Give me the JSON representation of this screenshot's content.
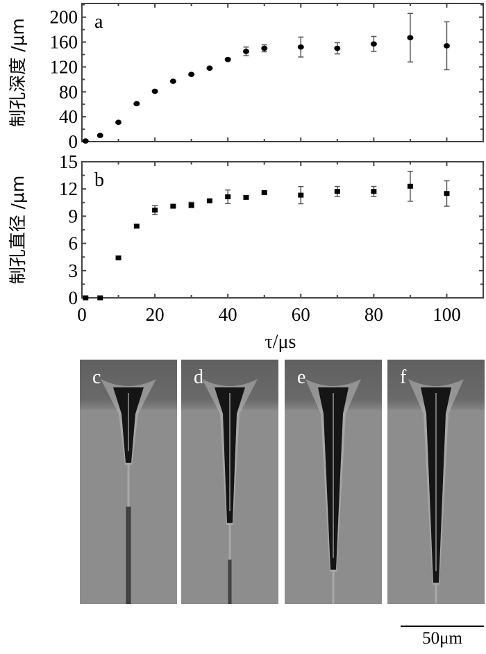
{
  "chart_data": [
    {
      "type": "scatter",
      "panel_label": "a",
      "ylabel": "制孔深度 /μm",
      "xlabel": "τ/μs",
      "xlim": [
        0,
        110
      ],
      "ylim": [
        0,
        222
      ],
      "xticks": [
        0,
        20,
        40,
        60,
        80,
        100
      ],
      "yticks": [
        0,
        40,
        80,
        120,
        160,
        200
      ],
      "marker": "circle",
      "x": [
        1,
        5,
        10,
        15,
        20,
        25,
        30,
        35,
        40,
        45,
        50,
        60,
        70,
        80,
        90,
        100
      ],
      "y": [
        1,
        10,
        31,
        61,
        81,
        97,
        108,
        118,
        132,
        145,
        150,
        152,
        150,
        157,
        167,
        154
      ],
      "yerr": [
        0,
        0,
        0,
        1.5,
        0,
        0,
        0,
        0,
        1.5,
        7,
        5.6,
        16,
        9,
        12,
        39,
        38.5
      ]
    },
    {
      "type": "scatter",
      "panel_label": "b",
      "ylabel": "制孔直径 /μm",
      "xlabel": "τ/μs",
      "xlim": [
        0,
        110
      ],
      "ylim": [
        0,
        15
      ],
      "xticks": [
        0,
        20,
        40,
        60,
        80,
        100
      ],
      "yticks": [
        0,
        3,
        6,
        9,
        12,
        15
      ],
      "marker": "square",
      "x": [
        1,
        5,
        10,
        15,
        20,
        25,
        30,
        35,
        40,
        45,
        50,
        60,
        70,
        80,
        90,
        100
      ],
      "y": [
        0,
        0,
        4.4,
        7.9,
        9.67,
        10.1,
        10.23,
        10.7,
        11.14,
        11.07,
        11.6,
        11.32,
        11.73,
        11.73,
        12.3,
        11.5
      ],
      "yerr": [
        0,
        0,
        0,
        0,
        0.5,
        0,
        0.3,
        0,
        0.75,
        0,
        0,
        0.95,
        0.55,
        0.55,
        1.65,
        1.4
      ]
    }
  ],
  "xaxis_label": "τ/μs",
  "images": [
    {
      "label": "c",
      "depth": 0.31
    },
    {
      "label": "d",
      "depth": 0.63
    },
    {
      "label": "e",
      "depth": 0.88
    },
    {
      "label": "f",
      "depth": 0.95
    }
  ],
  "scale_bar": {
    "label": "50μm"
  },
  "colors": {
    "marker": "#000000",
    "errorbar": "#555555",
    "axis": "#444444",
    "image_bg": "#8d8d8d"
  }
}
